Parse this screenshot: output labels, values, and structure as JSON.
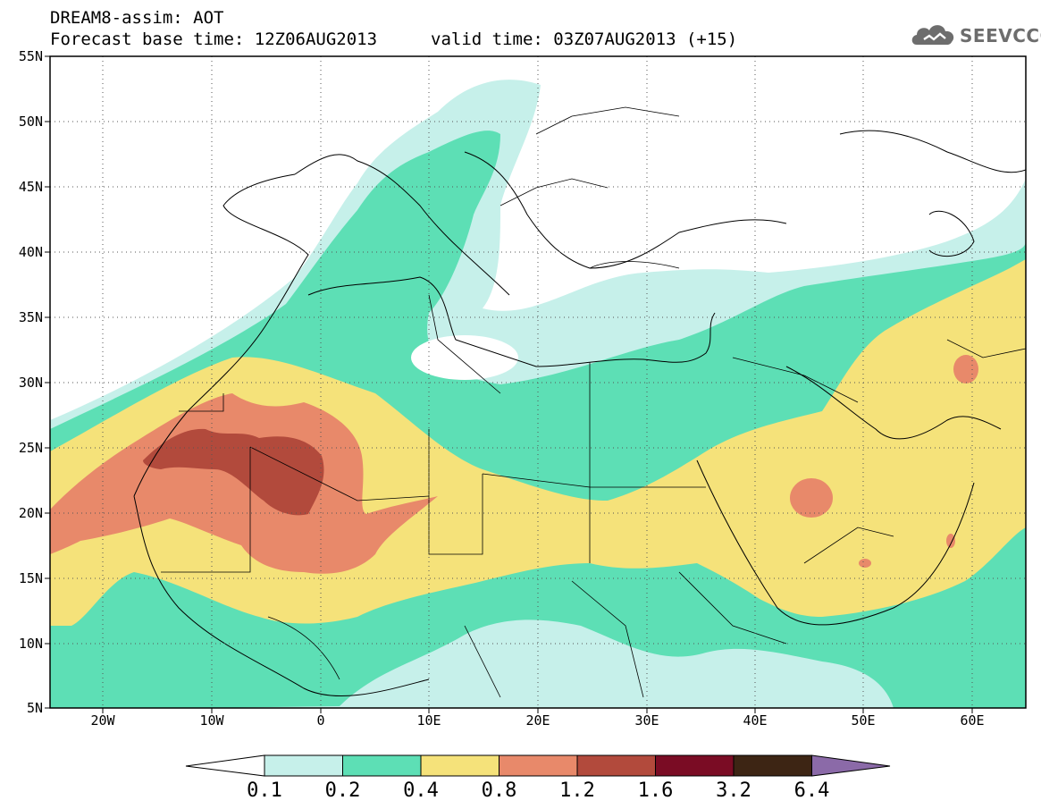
{
  "header": {
    "title": "DREAM8-assim: AOT",
    "base_time": "Forecast base time: 12Z06AUG2013",
    "valid_time": "valid time: 03Z07AUG2013 (+15)"
  },
  "logo": {
    "text": "SEEVCCC",
    "icon": "cloud-icon"
  },
  "axes": {
    "lat_ticks": [
      "55N",
      "50N",
      "45N",
      "40N",
      "35N",
      "30N",
      "25N",
      "20N",
      "15N",
      "10N",
      "5N"
    ],
    "lon_ticks": [
      "20W",
      "10W",
      "0",
      "10E",
      "20E",
      "30E",
      "40E",
      "50E",
      "60E"
    ]
  },
  "colorbar": {
    "labels": [
      "0.1",
      "0.2",
      "0.4",
      "0.8",
      "1.2",
      "1.6",
      "3.2",
      "6.4"
    ],
    "colors": [
      "#ffffff",
      "#c6f0ea",
      "#5ddfb5",
      "#f5e27a",
      "#e8896a",
      "#b24a3c",
      "#7a0c24",
      "#3d2514",
      "#8b6aa8"
    ]
  },
  "colors": {
    "c1": "#c6f0ea",
    "c2": "#5ddfb5",
    "c3": "#f5e27a",
    "c4": "#e8896a",
    "c5": "#b24a3c",
    "c6": "#7a0c24"
  }
}
